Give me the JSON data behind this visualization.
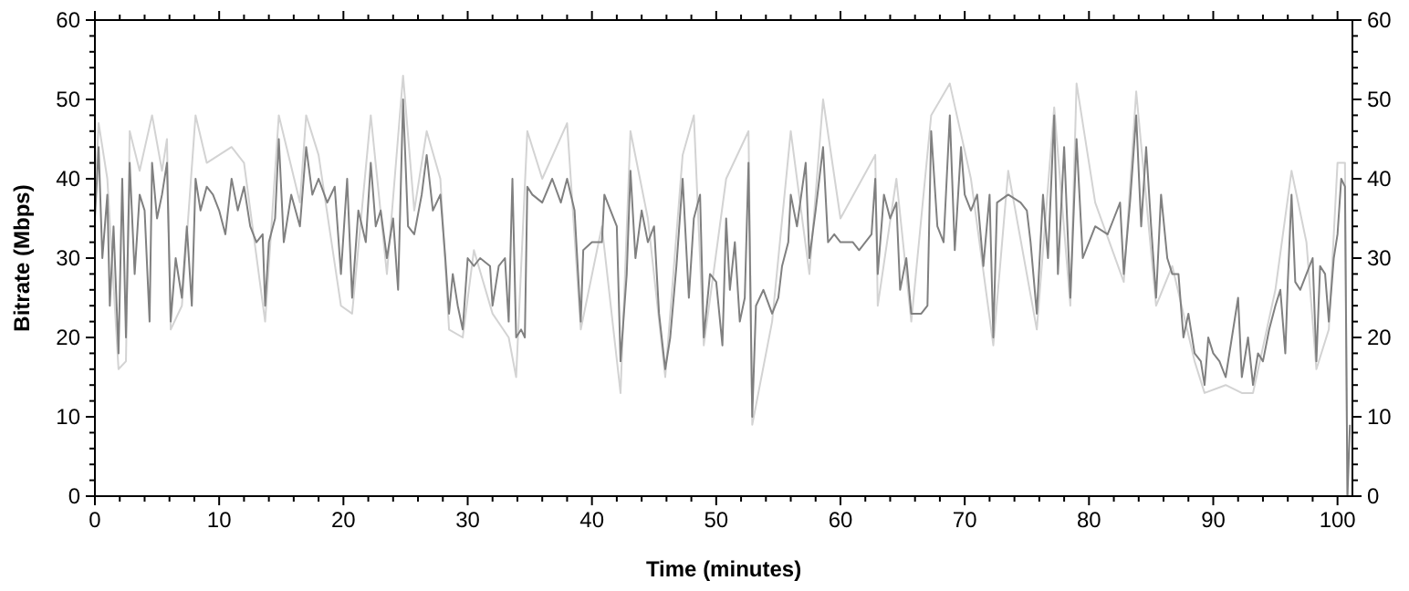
{
  "chart_data": {
    "type": "line",
    "xlabel": "Time (minutes)",
    "ylabel": "Bitrate (Mbps)",
    "xlim": [
      0,
      101.2
    ],
    "ylim": [
      0,
      60
    ],
    "y2lim": [
      0,
      60
    ],
    "xticks": [
      0,
      {
        "value": 2,
        "label": null
      },
      {
        "value": 4,
        "label": null
      },
      {
        "value": 6,
        "label": null
      },
      {
        "value": 8,
        "label": null
      },
      10,
      {
        "value": 12,
        "label": null
      },
      {
        "value": 14,
        "label": null
      },
      {
        "value": 16,
        "label": null
      },
      {
        "value": 18,
        "label": null
      },
      20,
      {
        "value": 22,
        "label": null
      },
      {
        "value": 24,
        "label": null
      },
      {
        "value": 26,
        "label": null
      },
      {
        "value": 28,
        "label": null
      },
      30,
      {
        "value": 32,
        "label": null
      },
      {
        "value": 34,
        "label": null
      },
      {
        "value": 36,
        "label": null
      },
      {
        "value": 38,
        "label": null
      },
      40,
      {
        "value": 42,
        "label": null
      },
      {
        "value": 44,
        "label": null
      },
      {
        "value": 46,
        "label": null
      },
      {
        "value": 48,
        "label": null
      },
      50,
      {
        "value": 52,
        "label": null
      },
      {
        "value": 54,
        "label": null
      },
      {
        "value": 56,
        "label": null
      },
      {
        "value": 58,
        "label": null
      },
      60,
      {
        "value": 62,
        "label": null
      },
      {
        "value": 64,
        "label": null
      },
      {
        "value": 66,
        "label": null
      },
      {
        "value": 68,
        "label": null
      },
      70,
      {
        "value": 72,
        "label": null
      },
      {
        "value": 74,
        "label": null
      },
      {
        "value": 76,
        "label": null
      },
      {
        "value": 78,
        "label": null
      },
      80,
      {
        "value": 82,
        "label": null
      },
      {
        "value": 84,
        "label": null
      },
      {
        "value": 86,
        "label": null
      },
      {
        "value": 88,
        "label": null
      },
      90,
      {
        "value": 92,
        "label": null
      },
      {
        "value": 94,
        "label": null
      },
      {
        "value": 96,
        "label": null
      },
      {
        "value": 98,
        "label": null
      },
      100
    ],
    "yticks": [
      0,
      {
        "value": 2,
        "label": null
      },
      {
        "value": 4,
        "label": null
      },
      {
        "value": 6,
        "label": null
      },
      {
        "value": 8,
        "label": null
      },
      10,
      {
        "value": 12,
        "label": null
      },
      {
        "value": 14,
        "label": null
      },
      {
        "value": 16,
        "label": null
      },
      {
        "value": 18,
        "label": null
      },
      20,
      {
        "value": 22,
        "label": null
      },
      {
        "value": 24,
        "label": null
      },
      {
        "value": 26,
        "label": null
      },
      {
        "value": 28,
        "label": null
      },
      30,
      {
        "value": 32,
        "label": null
      },
      {
        "value": 34,
        "label": null
      },
      {
        "value": 36,
        "label": null
      },
      {
        "value": 38,
        "label": null
      },
      40,
      {
        "value": 42,
        "label": null
      },
      {
        "value": 44,
        "label": null
      },
      {
        "value": 46,
        "label": null
      },
      {
        "value": 48,
        "label": null
      },
      50,
      {
        "value": 52,
        "label": null
      },
      {
        "value": 54,
        "label": null
      },
      {
        "value": 56,
        "label": null
      },
      {
        "value": 58,
        "label": null
      },
      60
    ],
    "y2ticks": [
      0,
      {
        "value": 2,
        "label": null
      },
      {
        "value": 4,
        "label": null
      },
      {
        "value": 6,
        "label": null
      },
      {
        "value": 8,
        "label": null
      },
      10,
      {
        "value": 12,
        "label": null
      },
      {
        "value": 14,
        "label": null
      },
      {
        "value": 16,
        "label": null
      },
      {
        "value": 18,
        "label": null
      },
      20,
      {
        "value": 22,
        "label": null
      },
      {
        "value": 24,
        "label": null
      },
      {
        "value": 26,
        "label": null
      },
      {
        "value": 28,
        "label": null
      },
      30,
      {
        "value": 32,
        "label": null
      },
      {
        "value": 34,
        "label": null
      },
      {
        "value": 36,
        "label": null
      },
      {
        "value": 38,
        "label": null
      },
      40,
      {
        "value": 42,
        "label": null
      },
      {
        "value": 44,
        "label": null
      },
      {
        "value": 46,
        "label": null
      },
      {
        "value": 48,
        "label": null
      },
      50,
      {
        "value": 52,
        "label": null
      },
      {
        "value": 54,
        "label": null
      },
      {
        "value": 56,
        "label": null
      },
      {
        "value": 58,
        "label": null
      },
      60
    ],
    "grid": false,
    "marker": "none",
    "line_style": "solid",
    "series": [
      {
        "color": "#d3d3d3",
        "x": [
          0,
          0.3,
          1,
          1.9,
          2.5,
          2.8,
          3.6,
          4.6,
          5.4,
          5.8,
          6.1,
          7,
          8.1,
          9,
          11,
          12,
          13.7,
          14.8,
          16.5,
          17,
          18,
          19.8,
          20.7,
          22.2,
          23.5,
          24.8,
          25.7,
          26.7,
          27.8,
          28.5,
          29.6,
          30.5,
          32,
          33.3,
          33.9,
          34.8,
          36,
          38,
          39.1,
          40.8,
          42.3,
          43.1,
          44.5,
          45.9,
          47.3,
          48.2,
          49,
          50.8,
          52.6,
          52.9,
          54.5,
          56,
          57.5,
          58.6,
          60,
          62.8,
          63,
          64.5,
          65.7,
          67.3,
          68.8,
          70.5,
          72.3,
          73.5,
          75.8,
          77.2,
          78.5,
          79,
          80.5,
          82.8,
          83.8,
          85.4,
          86.7,
          88.5,
          89.3,
          91,
          92.3,
          93.2,
          95,
          96.3,
          97.5,
          98.3,
          99.3,
          100,
          100.6,
          100.8
        ],
        "values": [
          37,
          47,
          40,
          16,
          17,
          46,
          41,
          48,
          41,
          45,
          21,
          24,
          48,
          42,
          44,
          42,
          22,
          48,
          37,
          48,
          43,
          24,
          23,
          48,
          28,
          53,
          36,
          46,
          40,
          21,
          20,
          31,
          23,
          20,
          15,
          46,
          40,
          47,
          21,
          34,
          13,
          46,
          35,
          15,
          43,
          48,
          19,
          40,
          46,
          9,
          22,
          46,
          28,
          50,
          35,
          43,
          24,
          40,
          22,
          48,
          52,
          40,
          19,
          41,
          21,
          49,
          24,
          52,
          37,
          27,
          51,
          24,
          29,
          17,
          13,
          14,
          13,
          13,
          26,
          41,
          32,
          16,
          21,
          42,
          42,
          0
        ]
      },
      {
        "color": "#808080",
        "x": [
          0,
          0.3,
          0.6,
          1,
          1.2,
          1.5,
          1.9,
          2.2,
          2.5,
          2.8,
          3.2,
          3.6,
          4,
          4.4,
          4.6,
          5,
          5.4,
          5.8,
          6.1,
          6.5,
          7,
          7.4,
          7.8,
          8.1,
          8.5,
          9,
          9.5,
          10,
          10.5,
          11,
          11.5,
          12,
          12.5,
          13,
          13.5,
          13.7,
          14,
          14.5,
          14.8,
          15.2,
          15.8,
          16.5,
          17,
          17.5,
          18,
          18.7,
          19.3,
          19.8,
          20.3,
          20.7,
          21.2,
          21.8,
          22.2,
          22.6,
          23,
          23.5,
          24,
          24.4,
          24.8,
          25.2,
          25.7,
          26.3,
          26.7,
          27.2,
          27.8,
          28.2,
          28.5,
          28.8,
          29.2,
          29.6,
          30,
          30.5,
          31,
          31.8,
          32,
          32.5,
          33,
          33.3,
          33.6,
          33.9,
          34.3,
          34.6,
          34.8,
          35.2,
          36,
          36.8,
          37.5,
          38,
          38.6,
          39.1,
          39.3,
          40,
          40.8,
          41,
          41.5,
          42,
          42.3,
          42.8,
          43.1,
          43.5,
          44,
          44.5,
          45,
          45.4,
          45.9,
          46.3,
          46.8,
          47.3,
          47.8,
          48.2,
          48.7,
          49,
          49.5,
          50,
          50.5,
          50.8,
          51.1,
          51.5,
          51.9,
          52.3,
          52.6,
          52.9,
          53.2,
          53.8,
          54.5,
          55,
          55.3,
          55.8,
          56,
          56.5,
          57.2,
          57.5,
          58,
          58.6,
          59,
          59.5,
          60,
          61,
          61.5,
          62.5,
          62.8,
          63,
          63.5,
          64,
          64.5,
          64.8,
          65.3,
          65.7,
          66.5,
          67,
          67.3,
          67.8,
          68.3,
          68.8,
          69.2,
          69.7,
          70,
          70.5,
          71,
          71.5,
          72,
          72.3,
          72.6,
          73.5,
          74.5,
          75,
          75.3,
          75.8,
          76.3,
          76.7,
          77.2,
          77.5,
          78,
          78.5,
          79,
          79.5,
          80,
          80.5,
          81.5,
          82,
          82.5,
          82.8,
          83.3,
          83.8,
          84.2,
          84.6,
          85,
          85.4,
          85.8,
          86.3,
          86.7,
          87.2,
          87.6,
          88,
          88.5,
          89,
          89.3,
          89.6,
          90,
          90.5,
          91,
          91.5,
          92,
          92.3,
          92.8,
          93.2,
          93.6,
          94,
          94.5,
          95,
          95.4,
          95.8,
          96,
          96.3,
          96.6,
          97,
          97.5,
          98,
          98.3,
          98.6,
          99,
          99.3,
          99.7,
          100,
          100.3,
          100.6,
          100.8,
          101
        ],
        "values": [
          35,
          44,
          30,
          38,
          24,
          34,
          18,
          40,
          20,
          42,
          28,
          38,
          36,
          22,
          42,
          35,
          38,
          42,
          22,
          30,
          25,
          34,
          24,
          40,
          36,
          39,
          38,
          36,
          33,
          40,
          36,
          39,
          34,
          32,
          33,
          24,
          32,
          35,
          45,
          32,
          38,
          34,
          44,
          38,
          40,
          37,
          39,
          28,
          40,
          25,
          36,
          32,
          42,
          34,
          36,
          30,
          35,
          26,
          50,
          34,
          33,
          38,
          43,
          36,
          38,
          30,
          23,
          28,
          24,
          21,
          30,
          29,
          30,
          29,
          24,
          29,
          30,
          22,
          40,
          20,
          21,
          20,
          39,
          38,
          37,
          40,
          37,
          40,
          36,
          22,
          31,
          32,
          32,
          38,
          36,
          34,
          17,
          28,
          41,
          30,
          36,
          32,
          34,
          23,
          16,
          20,
          29,
          40,
          25,
          35,
          38,
          20,
          28,
          27,
          19,
          35,
          26,
          32,
          22,
          25,
          42,
          10,
          24,
          26,
          23,
          25,
          29,
          32,
          38,
          34,
          42,
          30,
          36,
          44,
          32,
          33,
          32,
          32,
          31,
          33,
          40,
          28,
          38,
          35,
          37,
          26,
          30,
          23,
          23,
          24,
          46,
          34,
          32,
          48,
          31,
          44,
          38,
          36,
          38,
          29,
          38,
          20,
          37,
          38,
          37,
          36,
          32,
          23,
          38,
          30,
          48,
          28,
          44,
          25,
          45,
          30,
          32,
          34,
          33,
          35,
          37,
          28,
          37,
          48,
          34,
          44,
          34,
          25,
          38,
          30,
          28,
          28,
          20,
          23,
          18,
          17,
          14,
          20,
          18,
          17,
          15,
          20,
          25,
          15,
          20,
          14,
          18,
          17,
          21,
          24,
          26,
          18,
          27,
          38,
          27,
          26,
          28,
          30,
          17,
          29,
          28,
          22,
          30,
          33,
          40,
          39,
          0,
          9
        ]
      }
    ]
  }
}
